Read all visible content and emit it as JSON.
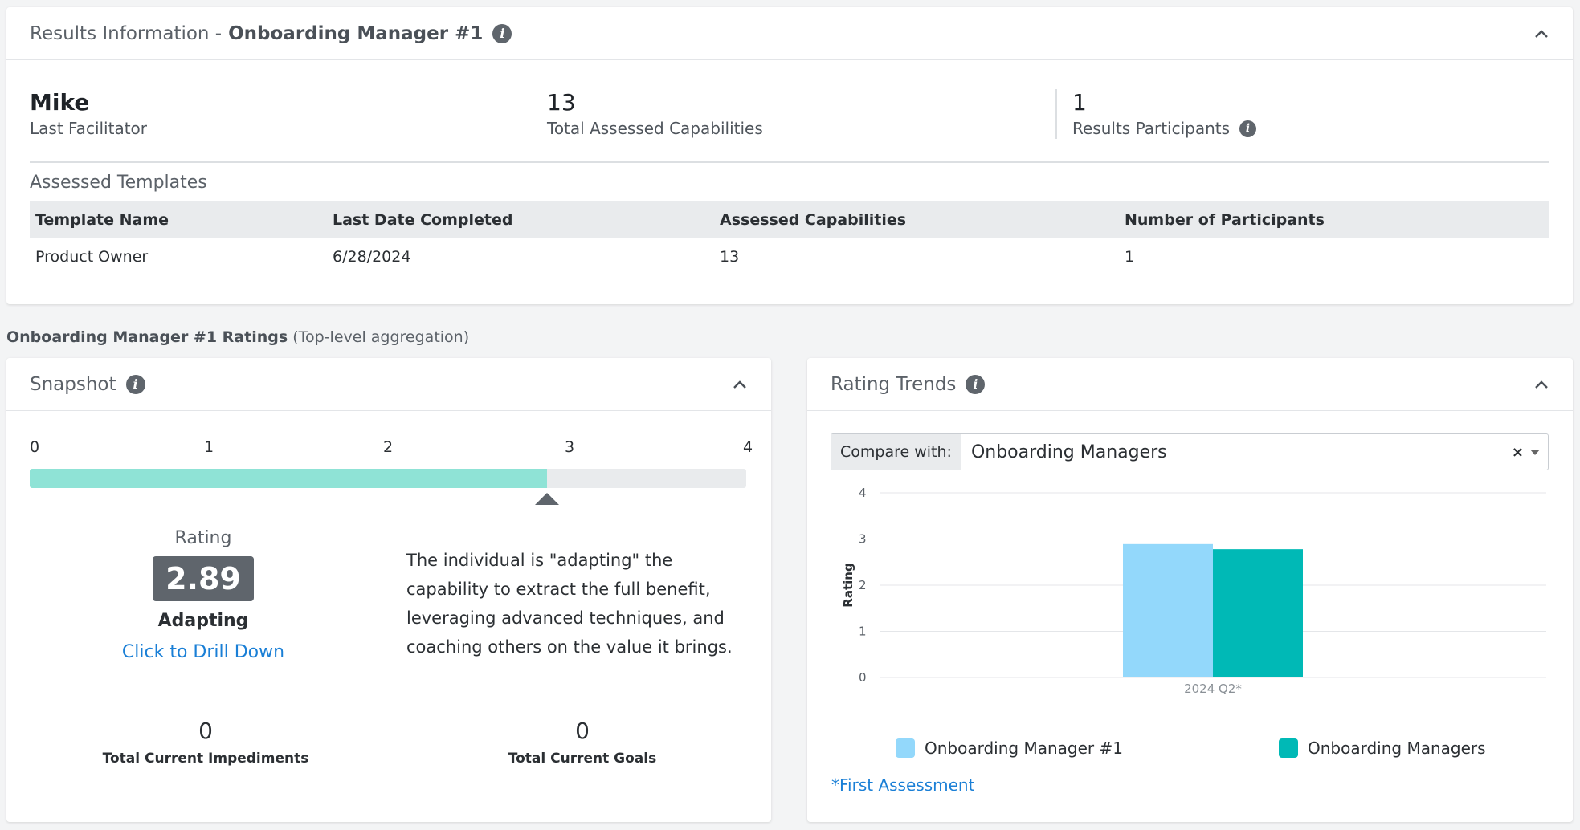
{
  "results": {
    "title_prefix": "Results Information -",
    "title_name": "Onboarding Manager #1",
    "facilitator_value": "Mike",
    "facilitator_label": "Last Facilitator",
    "capabilities_value": "13",
    "capabilities_label": "Total Assessed Capabilities",
    "participants_value": "1",
    "participants_label": "Results Participants",
    "templates_title": "Assessed Templates",
    "columns": [
      "Template Name",
      "Last Date Completed",
      "Assessed Capabilities",
      "Number of Participants"
    ],
    "rows": [
      [
        "Product Owner",
        "6/28/2024",
        "13",
        "1"
      ]
    ]
  },
  "section": {
    "label_bold": "Onboarding Manager #1 Ratings",
    "label_rest": "(Top-level aggregation)"
  },
  "snapshot": {
    "title": "Snapshot",
    "scale_ticks": [
      "0",
      "1",
      "2",
      "3",
      "4"
    ],
    "scale_max": 4,
    "value": 2.89,
    "rating_label": "Rating",
    "rating_value": "2.89",
    "rating_name": "Adapting",
    "drill_label": "Click to Drill Down",
    "description": "The individual is \"adapting\" the capability to extract the full benefit, leveraging advanced techniques, and coaching others on the value it brings.",
    "impediments_value": "0",
    "impediments_label": "Total Current Impediments",
    "goals_value": "0",
    "goals_label": "Total Current Goals",
    "colors": {
      "fill": "#8fe3d6",
      "track": "#e9ebed"
    }
  },
  "trends": {
    "title": "Rating Trends",
    "compare_label": "Compare with:",
    "compare_value": "Onboarding Managers",
    "clear_symbol": "×",
    "footnote": "*First Assessment"
  },
  "chart_data": {
    "type": "bar",
    "categories": [
      "2024 Q2*"
    ],
    "series": [
      {
        "name": "Onboarding Manager #1",
        "values": [
          2.89
        ],
        "color": "#93d8fb"
      },
      {
        "name": "Onboarding Managers",
        "values": [
          2.78
        ],
        "color": "#00b9b6"
      }
    ],
    "ylabel": "Rating",
    "ylim": [
      0,
      4
    ],
    "yticks": [
      "0",
      "1",
      "2",
      "3",
      "4"
    ],
    "grid": true,
    "legend": "bottom"
  }
}
